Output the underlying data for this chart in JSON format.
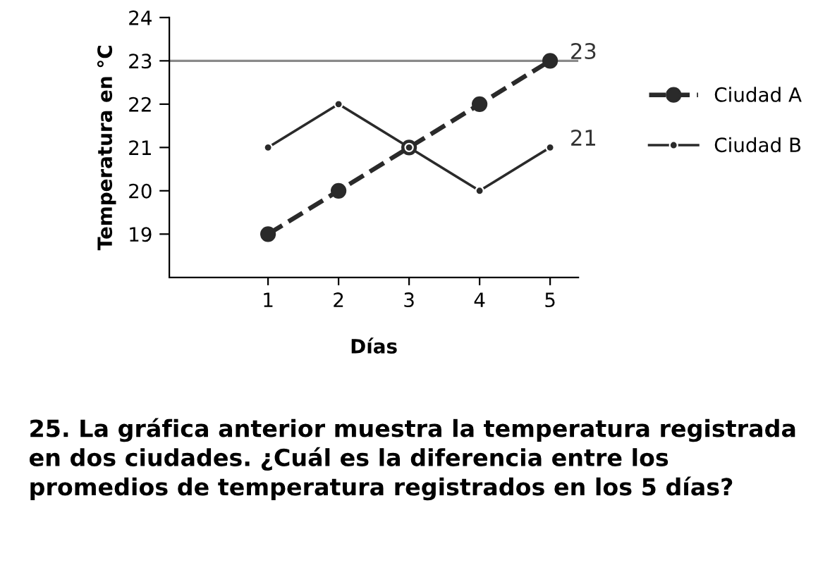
{
  "chart_data": {
    "type": "line",
    "xlabel": "Días",
    "ylabel": "Temperatura en °C",
    "x": [
      1,
      2,
      3,
      4,
      5
    ],
    "series": [
      {
        "name": "Ciudad A",
        "color": "#2a2a2a",
        "line_style": "dashed",
        "values": [
          19,
          20,
          21,
          22,
          23
        ]
      },
      {
        "name": "Ciudad B",
        "color": "#2a2a2a",
        "line_style": "solid",
        "values": [
          21,
          22,
          21,
          20,
          21
        ]
      }
    ],
    "xlim": [
      -0.4,
      5.4
    ],
    "xticks": [
      1,
      2,
      3,
      4,
      5
    ],
    "ylim": [
      18,
      24
    ],
    "yticks": [
      19,
      20,
      21,
      22,
      23,
      24
    ],
    "marker": "circle",
    "grid": false,
    "legend": "right",
    "ref_lines": [
      {
        "axis": "y",
        "value": 23,
        "color": "#8a8a8a"
      }
    ],
    "annotations": [
      {
        "text": "23",
        "x": 5,
        "y": 23
      },
      {
        "text": "21",
        "x": 5,
        "y": 21
      },
      "25. La gráfica anterior muestra la temperatura registrada en dos ciudades. ¿Cuál es la diferencia entre los promedios de temperatura registrados en los 5 días?"
    ]
  }
}
